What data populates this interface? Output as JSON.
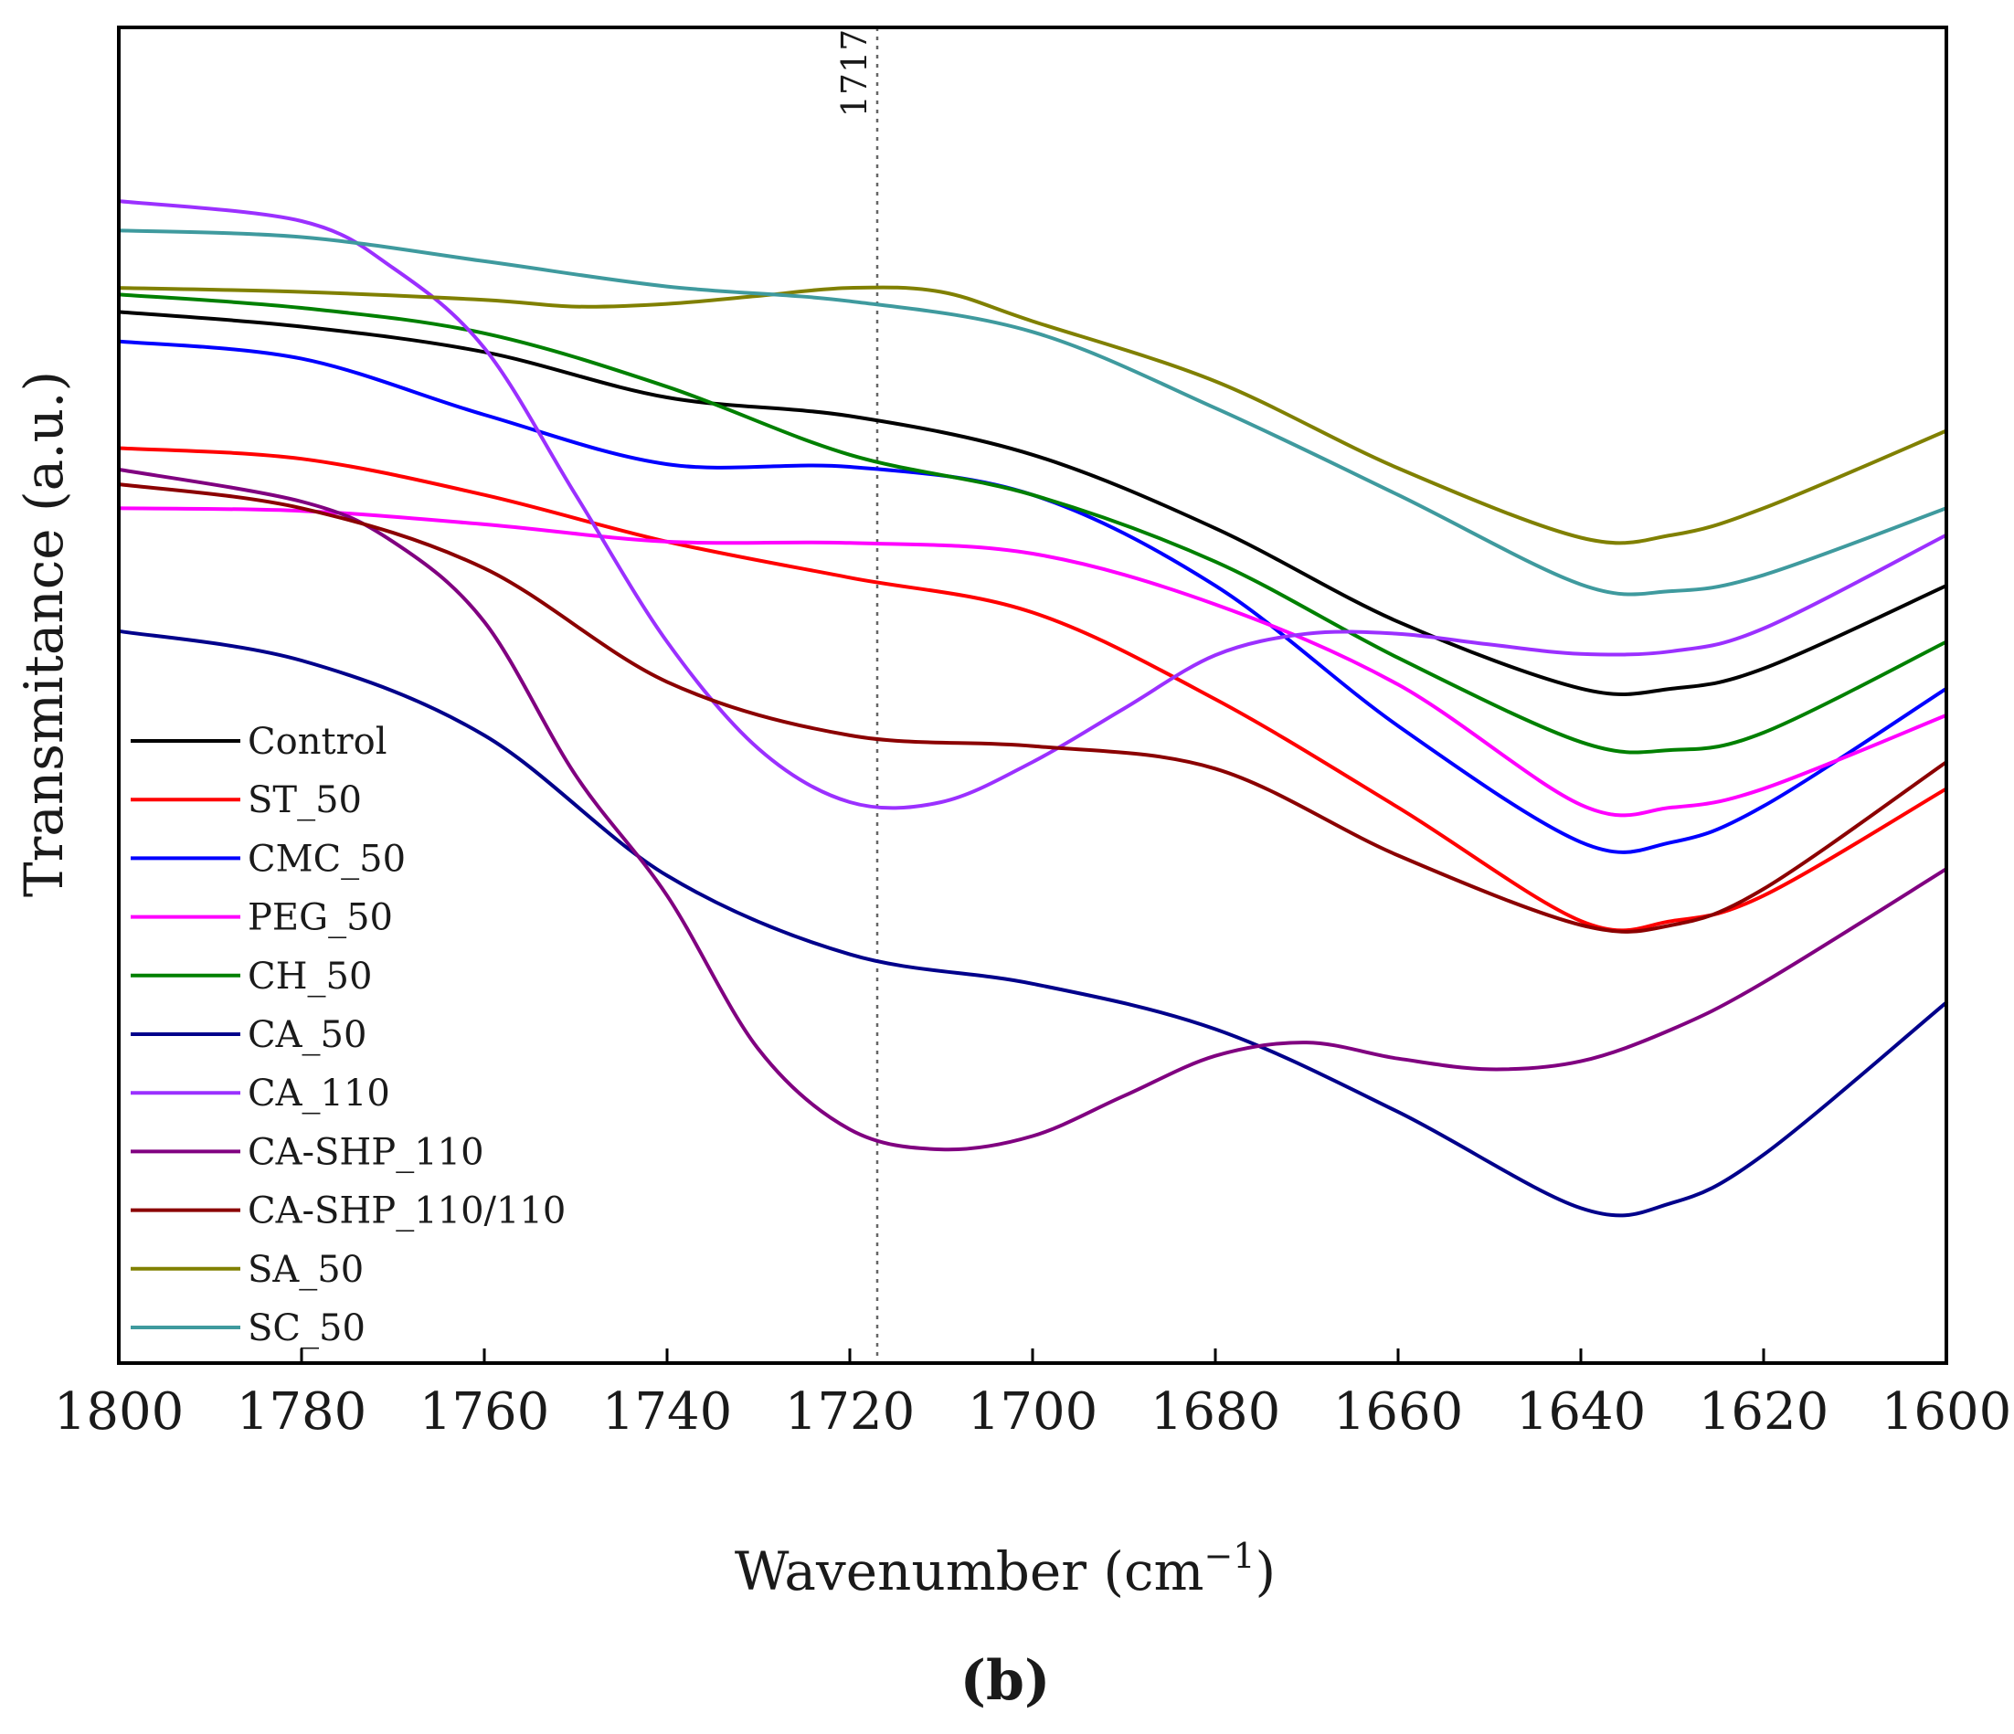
{
  "chart_data": {
    "type": "line",
    "title": "",
    "xlabel": "Wavenumber (cm",
    "xlabel_superscript": "−1",
    "xlabel_close": ")",
    "ylabel": "Transmitance (a.u.)",
    "panel_label": "b",
    "xlim": [
      1800,
      1600
    ],
    "ylim": [
      0,
      100
    ],
    "x_ticks": [
      1800,
      1780,
      1760,
      1740,
      1720,
      1700,
      1680,
      1660,
      1640,
      1620,
      1600
    ],
    "y_ticks_shown": false,
    "grid": false,
    "legend_location": "left",
    "annotations": [
      {
        "x": 1717,
        "label": "1717",
        "style": "dotted-vertical-line"
      }
    ],
    "series": [
      {
        "name": "Control",
        "color": "#000000",
        "points": [
          [
            1800,
            78.7
          ],
          [
            1780,
            77.6
          ],
          [
            1760,
            75.7
          ],
          [
            1740,
            72.3
          ],
          [
            1720,
            70.9
          ],
          [
            1700,
            68.0
          ],
          [
            1680,
            62.5
          ],
          [
            1660,
            55.5
          ],
          [
            1640,
            50.5
          ],
          [
            1630,
            50.5
          ],
          [
            1620,
            52.0
          ],
          [
            1600,
            58.2
          ]
        ]
      },
      {
        "name": "ST_50",
        "color": "#ff0000",
        "points": [
          [
            1800,
            68.5
          ],
          [
            1780,
            67.7
          ],
          [
            1760,
            65.0
          ],
          [
            1740,
            61.5
          ],
          [
            1720,
            58.8
          ],
          [
            1700,
            56.2
          ],
          [
            1680,
            49.7
          ],
          [
            1660,
            41.6
          ],
          [
            1640,
            33.1
          ],
          [
            1630,
            33.1
          ],
          [
            1620,
            35.0
          ],
          [
            1600,
            43.0
          ]
        ]
      },
      {
        "name": "CMC_50",
        "color": "#0000ff",
        "points": [
          [
            1800,
            76.5
          ],
          [
            1780,
            75.2
          ],
          [
            1760,
            71.0
          ],
          [
            1740,
            67.3
          ],
          [
            1720,
            67.1
          ],
          [
            1700,
            65.0
          ],
          [
            1680,
            58.2
          ],
          [
            1660,
            47.7
          ],
          [
            1640,
            39.0
          ],
          [
            1630,
            39.0
          ],
          [
            1620,
            41.7
          ],
          [
            1600,
            50.5
          ]
        ]
      },
      {
        "name": "PEG_50",
        "color": "#ff00ff",
        "points": [
          [
            1800,
            64.0
          ],
          [
            1780,
            63.8
          ],
          [
            1760,
            62.8
          ],
          [
            1740,
            61.5
          ],
          [
            1720,
            61.4
          ],
          [
            1700,
            60.6
          ],
          [
            1680,
            56.8
          ],
          [
            1660,
            50.8
          ],
          [
            1640,
            41.8
          ],
          [
            1630,
            41.6
          ],
          [
            1620,
            43.0
          ],
          [
            1600,
            48.5
          ]
        ]
      },
      {
        "name": "CH_50",
        "color": "#008000",
        "points": [
          [
            1800,
            80.0
          ],
          [
            1780,
            79.0
          ],
          [
            1760,
            77.1
          ],
          [
            1740,
            73.1
          ],
          [
            1720,
            68.0
          ],
          [
            1700,
            65.0
          ],
          [
            1680,
            60.0
          ],
          [
            1660,
            52.8
          ],
          [
            1640,
            46.5
          ],
          [
            1630,
            45.9
          ],
          [
            1620,
            47.2
          ],
          [
            1600,
            54.0
          ]
        ]
      },
      {
        "name": "CA_50",
        "color": "#00008b",
        "points": [
          [
            1800,
            54.8
          ],
          [
            1780,
            52.6
          ],
          [
            1760,
            47.0
          ],
          [
            1740,
            36.5
          ],
          [
            1720,
            30.6
          ],
          [
            1700,
            28.4
          ],
          [
            1680,
            25.0
          ],
          [
            1660,
            18.8
          ],
          [
            1640,
            11.6
          ],
          [
            1630,
            12.0
          ],
          [
            1620,
            15.6
          ],
          [
            1600,
            27.0
          ]
        ]
      },
      {
        "name": "CA_110",
        "color": "#9b30ff",
        "points": [
          [
            1800,
            87.0
          ],
          [
            1780,
            85.5
          ],
          [
            1770,
            82.0
          ],
          [
            1760,
            76.0
          ],
          [
            1750,
            65.0
          ],
          [
            1740,
            54.0
          ],
          [
            1730,
            46.0
          ],
          [
            1720,
            42.0
          ],
          [
            1710,
            42.0
          ],
          [
            1700,
            45.0
          ],
          [
            1690,
            49.0
          ],
          [
            1680,
            53.0
          ],
          [
            1670,
            54.6
          ],
          [
            1660,
            54.6
          ],
          [
            1650,
            53.8
          ],
          [
            1640,
            53.1
          ],
          [
            1630,
            53.3
          ],
          [
            1620,
            55.0
          ],
          [
            1600,
            62.0
          ]
        ]
      },
      {
        "name": "CA-SHP_110",
        "color": "#800080",
        "points": [
          [
            1800,
            66.9
          ],
          [
            1780,
            64.5
          ],
          [
            1770,
            61.5
          ],
          [
            1760,
            55.5
          ],
          [
            1750,
            44.0
          ],
          [
            1740,
            35.0
          ],
          [
            1730,
            23.5
          ],
          [
            1720,
            17.5
          ],
          [
            1710,
            16.0
          ],
          [
            1700,
            17.0
          ],
          [
            1690,
            20.0
          ],
          [
            1680,
            23.0
          ],
          [
            1670,
            24.0
          ],
          [
            1660,
            22.8
          ],
          [
            1650,
            22.0
          ],
          [
            1640,
            22.6
          ],
          [
            1630,
            25.0
          ],
          [
            1620,
            28.5
          ],
          [
            1600,
            37.0
          ]
        ]
      },
      {
        "name": "CA-SHP_110/110",
        "color": "#8b0000",
        "points": [
          [
            1800,
            65.8
          ],
          [
            1780,
            64.0
          ],
          [
            1760,
            59.5
          ],
          [
            1740,
            51.0
          ],
          [
            1720,
            47.0
          ],
          [
            1700,
            46.2
          ],
          [
            1680,
            44.5
          ],
          [
            1660,
            38.0
          ],
          [
            1640,
            32.8
          ],
          [
            1630,
            32.8
          ],
          [
            1620,
            35.5
          ],
          [
            1600,
            45.0
          ]
        ]
      },
      {
        "name": "SA_50",
        "color": "#808000",
        "points": [
          [
            1800,
            80.5
          ],
          [
            1780,
            80.2
          ],
          [
            1760,
            79.6
          ],
          [
            1750,
            79.1
          ],
          [
            1740,
            79.3
          ],
          [
            1730,
            79.9
          ],
          [
            1720,
            80.5
          ],
          [
            1710,
            80.2
          ],
          [
            1700,
            78.0
          ],
          [
            1680,
            73.5
          ],
          [
            1660,
            67.0
          ],
          [
            1640,
            61.8
          ],
          [
            1630,
            62.0
          ],
          [
            1620,
            64.0
          ],
          [
            1600,
            69.8
          ]
        ]
      },
      {
        "name": "SC_50",
        "color": "#3f9a9e",
        "points": [
          [
            1800,
            84.8
          ],
          [
            1780,
            84.3
          ],
          [
            1760,
            82.5
          ],
          [
            1740,
            80.6
          ],
          [
            1720,
            79.5
          ],
          [
            1700,
            77.2
          ],
          [
            1680,
            71.5
          ],
          [
            1660,
            65.0
          ],
          [
            1640,
            58.3
          ],
          [
            1630,
            57.8
          ],
          [
            1620,
            59.0
          ],
          [
            1600,
            64.0
          ]
        ]
      }
    ]
  }
}
